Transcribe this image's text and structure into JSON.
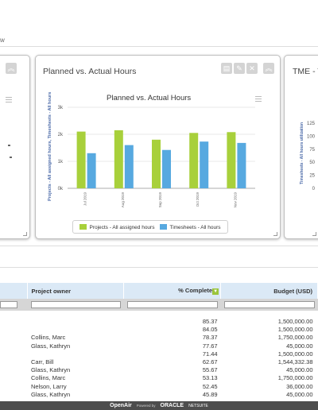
{
  "breadcrumb": "w",
  "panels": {
    "left": {},
    "center": {
      "title": "Planned vs. Actual Hours",
      "chart_title": "Planned vs. Actual Hours"
    },
    "right": {
      "title": "TME - T",
      "chart_ylabel": "Timesheets - All hours utilization"
    }
  },
  "chart_data": {
    "type": "bar",
    "title": "Planned vs. Actual Hours",
    "ylabel": "Projects - All assigned hours, Timesheets - All hours",
    "categories": [
      "Jul 2019",
      "Aug 2019",
      "Sep 2019",
      "Oct 2019",
      "Nov 2019"
    ],
    "yticks": [
      "0k",
      "1k",
      "2k",
      "3k"
    ],
    "ylim": [
      0,
      3000
    ],
    "grid": true,
    "legend_position": "bottom",
    "series": [
      {
        "name": "Projects - All assigned hours",
        "color": "#a8d03b",
        "values": [
          2100,
          2150,
          1800,
          2050,
          2080
        ]
      },
      {
        "name": "Timesheets - All hours",
        "color": "#57a9e0",
        "values": [
          1300,
          1600,
          1420,
          1730,
          1680
        ]
      }
    ]
  },
  "right_chart": {
    "yticks": [
      "125",
      "100",
      "75",
      "50",
      "25",
      "0"
    ]
  },
  "table": {
    "headers": {
      "owner": "Project owner",
      "complete": "% Complete",
      "budget": "Budget (USD)"
    },
    "rows": [
      {
        "owner": "",
        "complete": "85.37",
        "budget": "1,500,000.00"
      },
      {
        "owner": "",
        "complete": "84.05",
        "budget": "1,500,000.00"
      },
      {
        "owner": "Collins, Marc",
        "complete": "78.37",
        "budget": "1,750,000.00"
      },
      {
        "owner": "Glass, Kathryn",
        "complete": "77.67",
        "budget": "45,000.00"
      },
      {
        "owner": "",
        "complete": "71.44",
        "budget": "1,500,000.00"
      },
      {
        "owner": "Carr, Bill",
        "complete": "62.67",
        "budget": "1,544,332.38"
      },
      {
        "owner": "Glass, Kathryn",
        "complete": "55.67",
        "budget": "45,000.00"
      },
      {
        "owner": "Collins, Marc",
        "complete": "53.13",
        "budget": "1,750,000.00"
      },
      {
        "owner": "Nelson, Larry",
        "complete": "52.45",
        "budget": "36,000.00"
      },
      {
        "owner": "Glass, Kathryn",
        "complete": "45.89",
        "budget": "45,000.00"
      }
    ]
  },
  "footer": {
    "brand": "OpenAir",
    "powered": "Powered by",
    "oracle": "ORACLE",
    "netsuite": "NETSUITE"
  },
  "colors": {
    "green": "#a8d03b",
    "blue": "#57a9e0",
    "header_blue": "#dbe9f6",
    "axis_label": "#4b6aa8"
  }
}
